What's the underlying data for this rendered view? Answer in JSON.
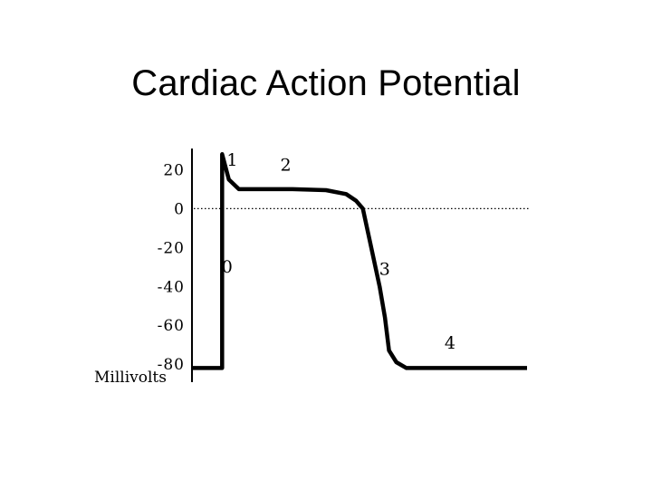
{
  "slide": {
    "title": "Cardiac Action Potential"
  },
  "chart_data": {
    "type": "line",
    "title": "Cardiac Action Potential",
    "ylabel": "Millivolts",
    "xlabel": "",
    "y_ticks": [
      "20",
      "0",
      "-20",
      "-40",
      "-60",
      "-80"
    ],
    "y_tick_values": [
      20,
      0,
      -20,
      -40,
      -60,
      -80
    ],
    "ylim": [
      -86,
      30
    ],
    "xlim": [
      0,
      100
    ],
    "reference_line": {
      "y": 0,
      "style": "dotted"
    },
    "grid": false,
    "series": [
      {
        "values": [
          {
            "x": 0,
            "y": -82
          },
          {
            "x": 9,
            "y": -82
          },
          {
            "x": 9,
            "y": 28
          },
          {
            "x": 11,
            "y": 15
          },
          {
            "x": 14,
            "y": 10
          },
          {
            "x": 20,
            "y": 10
          },
          {
            "x": 30,
            "y": 10
          },
          {
            "x": 40,
            "y": 9.5
          },
          {
            "x": 46,
            "y": 7.5
          },
          {
            "x": 49,
            "y": 4
          },
          {
            "x": 51,
            "y": 0
          },
          {
            "x": 53,
            "y": -16
          },
          {
            "x": 56,
            "y": -40
          },
          {
            "x": 57.6,
            "y": -56
          },
          {
            "x": 58.8,
            "y": -73
          },
          {
            "x": 61,
            "y": -79
          },
          {
            "x": 64,
            "y": -82
          },
          {
            "x": 70,
            "y": -82
          },
          {
            "x": 100,
            "y": -82
          }
        ]
      }
    ],
    "phase_labels": [
      {
        "text": "1",
        "x": 12,
        "y": 22
      },
      {
        "text": "2",
        "x": 28,
        "y": 19.5
      },
      {
        "text": "0",
        "x": 10.5,
        "y": -33
      },
      {
        "text": "3",
        "x": 57.5,
        "y": -34
      },
      {
        "text": "4",
        "x": 77,
        "y": -72
      }
    ]
  }
}
